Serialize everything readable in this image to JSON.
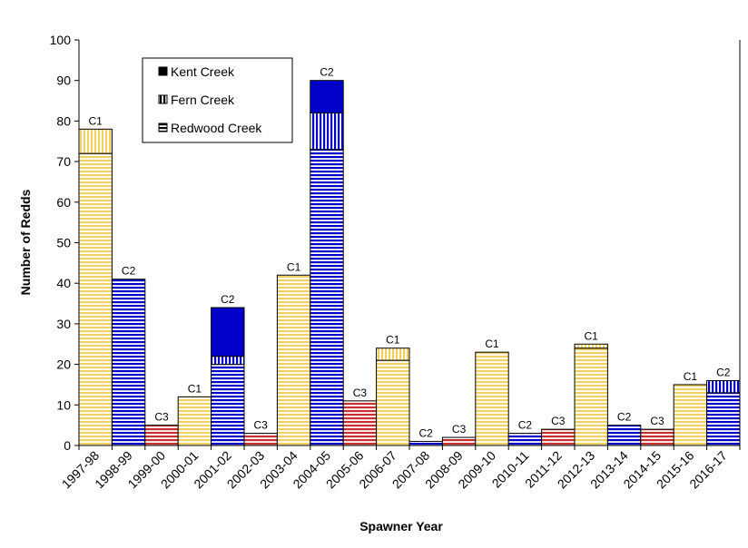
{
  "chart_data": {
    "type": "bar",
    "stacked": true,
    "xlabel": "Spawner Year",
    "ylabel": "Number of Redds",
    "ylim": [
      0,
      100
    ],
    "yticks": [
      0,
      10,
      20,
      30,
      40,
      50,
      60,
      70,
      80,
      90,
      100
    ],
    "grid": false,
    "legend_position": "top-left",
    "categories": [
      "1997-98",
      "1998-99",
      "1999-00",
      "2000-01",
      "2001-02",
      "2002-03",
      "2003-04",
      "2004-05",
      "2005-06",
      "2006-07",
      "2007-08",
      "2008-09",
      "2009-10",
      "2010-11",
      "2011-12",
      "2012-13",
      "2013-14",
      "2014-15",
      "2015-16",
      "2016-17"
    ],
    "cohort_labels": [
      "C1",
      "C2",
      "C3",
      "C1",
      "C2",
      "C3",
      "C1",
      "C2",
      "C3",
      "C1",
      "C2",
      "C3",
      "C1",
      "C2",
      "C3",
      "C1",
      "C2",
      "C3",
      "C1",
      "C2"
    ],
    "cohort_colors": {
      "C1": "#f0d060",
      "C2": "#0000c8",
      "C3": "#c83030"
    },
    "series": [
      {
        "name": "Redwood Creek",
        "pattern": "horizontal-stripes",
        "values": [
          72,
          41,
          5,
          12,
          20,
          3,
          42,
          73,
          11,
          21,
          1,
          2,
          23,
          3,
          4,
          24,
          5,
          4,
          15,
          13
        ]
      },
      {
        "name": "Fern Creek",
        "pattern": "vertical-stripes",
        "values": [
          6,
          0,
          0,
          0,
          2,
          0,
          0,
          9,
          0,
          3,
          0,
          0,
          0,
          0,
          0,
          1,
          0,
          0,
          0,
          3
        ]
      },
      {
        "name": "Kent Creek",
        "pattern": "solid",
        "values": [
          0,
          0,
          0,
          0,
          12,
          0,
          0,
          8,
          0,
          0,
          0,
          0,
          0,
          0,
          0,
          0,
          0,
          0,
          0,
          0
        ]
      }
    ]
  }
}
